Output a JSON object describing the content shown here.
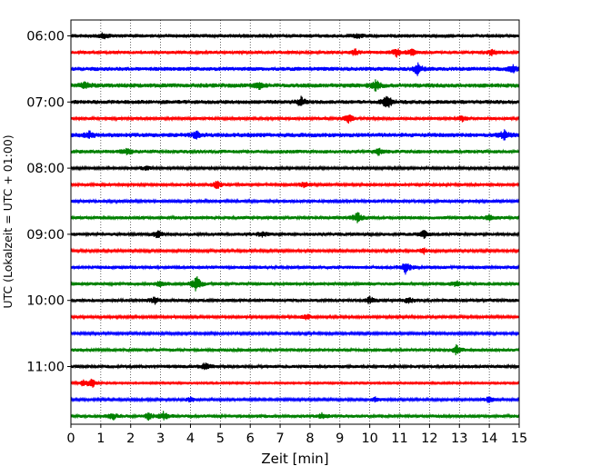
{
  "chart_data": {
    "type": "line",
    "xlabel": "Zeit  [min]",
    "ylabel": "UTC (Lokalzeit = UTC + 01:00)",
    "xlim": [
      0,
      15
    ],
    "xticks": [
      0,
      1,
      2,
      3,
      4,
      5,
      6,
      7,
      8,
      9,
      10,
      11,
      12,
      13,
      14,
      15
    ],
    "grid": "vertical dotted",
    "trace_interval_min": 15,
    "colors_cycle": [
      "#000000",
      "#ff0000",
      "#0000ff",
      "#008000"
    ],
    "ytick_labels": [
      "06:00",
      "07:00",
      "08:00",
      "09:00",
      "10:00",
      "11:00"
    ],
    "traces": [
      {
        "start": "06:00",
        "color": "#000000",
        "amplitude": 2.0,
        "events": [
          [
            1.1,
            3.5
          ],
          [
            9.6,
            2.5
          ]
        ]
      },
      {
        "start": "06:15",
        "color": "#ff0000",
        "amplitude": 1.8,
        "events": [
          [
            9.5,
            3.5
          ],
          [
            10.9,
            4.5
          ],
          [
            11.4,
            3.5
          ],
          [
            14.1,
            3.0
          ]
        ]
      },
      {
        "start": "06:30",
        "color": "#0000ff",
        "amplitude": 2.2,
        "events": [
          [
            11.6,
            6.0
          ],
          [
            14.8,
            3.5
          ]
        ]
      },
      {
        "start": "06:45",
        "color": "#008000",
        "amplitude": 2.4,
        "events": [
          [
            0.5,
            4.0
          ],
          [
            6.3,
            3.5
          ],
          [
            10.2,
            5.5
          ]
        ]
      },
      {
        "start": "07:00",
        "color": "#000000",
        "amplitude": 2.2,
        "events": [
          [
            7.7,
            5.0
          ],
          [
            10.6,
            9.0
          ]
        ]
      },
      {
        "start": "07:15",
        "color": "#ff0000",
        "amplitude": 1.6,
        "events": [
          [
            9.3,
            5.5
          ],
          [
            13.1,
            3.5
          ]
        ]
      },
      {
        "start": "07:30",
        "color": "#0000ff",
        "amplitude": 2.4,
        "events": [
          [
            0.6,
            4.0
          ],
          [
            4.2,
            3.5
          ],
          [
            14.5,
            4.5
          ]
        ]
      },
      {
        "start": "07:45",
        "color": "#008000",
        "amplitude": 2.0,
        "events": [
          [
            1.9,
            3.5
          ],
          [
            10.3,
            3.5
          ]
        ]
      },
      {
        "start": "08:00",
        "color": "#000000",
        "amplitude": 1.5,
        "events": [
          [
            2.5,
            2.5
          ]
        ]
      },
      {
        "start": "08:15",
        "color": "#ff0000",
        "amplitude": 1.6,
        "events": [
          [
            4.9,
            4.5
          ],
          [
            7.8,
            3.5
          ]
        ]
      },
      {
        "start": "08:30",
        "color": "#0000ff",
        "amplitude": 1.6,
        "events": []
      },
      {
        "start": "08:45",
        "color": "#008000",
        "amplitude": 1.8,
        "events": [
          [
            9.6,
            6.5
          ],
          [
            14.0,
            3.0
          ]
        ]
      },
      {
        "start": "09:00",
        "color": "#000000",
        "amplitude": 1.8,
        "events": [
          [
            2.9,
            4.5
          ],
          [
            6.4,
            3.5
          ],
          [
            11.8,
            4.5
          ]
        ]
      },
      {
        "start": "09:15",
        "color": "#ff0000",
        "amplitude": 1.4,
        "events": [
          [
            11.8,
            3.5
          ]
        ]
      },
      {
        "start": "09:30",
        "color": "#0000ff",
        "amplitude": 1.8,
        "events": [
          [
            11.2,
            7.0
          ]
        ]
      },
      {
        "start": "09:45",
        "color": "#008000",
        "amplitude": 1.8,
        "events": [
          [
            3.0,
            3.5
          ],
          [
            4.2,
            8.5
          ],
          [
            12.9,
            3.0
          ]
        ]
      },
      {
        "start": "10:00",
        "color": "#000000",
        "amplitude": 1.8,
        "events": [
          [
            2.8,
            3.5
          ],
          [
            10.0,
            4.0
          ],
          [
            11.3,
            3.5
          ]
        ]
      },
      {
        "start": "10:15",
        "color": "#ff0000",
        "amplitude": 1.5,
        "events": [
          [
            7.9,
            3.0
          ]
        ]
      },
      {
        "start": "10:30",
        "color": "#0000ff",
        "amplitude": 1.4,
        "events": []
      },
      {
        "start": "10:45",
        "color": "#008000",
        "amplitude": 1.8,
        "events": [
          [
            12.9,
            5.0
          ]
        ]
      },
      {
        "start": "11:00",
        "color": "#000000",
        "amplitude": 1.8,
        "events": [
          [
            4.5,
            4.0
          ]
        ]
      },
      {
        "start": "11:15",
        "color": "#ff0000",
        "amplitude": 1.0,
        "events": [
          [
            0.4,
            4.0
          ],
          [
            0.7,
            6.0
          ]
        ]
      },
      {
        "start": "11:30",
        "color": "#0000ff",
        "amplitude": 1.3,
        "events": [
          [
            4.0,
            3.5
          ],
          [
            10.2,
            3.0
          ],
          [
            14.0,
            4.0
          ]
        ]
      },
      {
        "start": "11:45",
        "color": "#008000",
        "amplitude": 1.8,
        "events": [
          [
            1.4,
            4.0
          ],
          [
            2.6,
            3.5
          ],
          [
            3.1,
            4.5
          ],
          [
            8.4,
            3.0
          ]
        ]
      }
    ]
  }
}
